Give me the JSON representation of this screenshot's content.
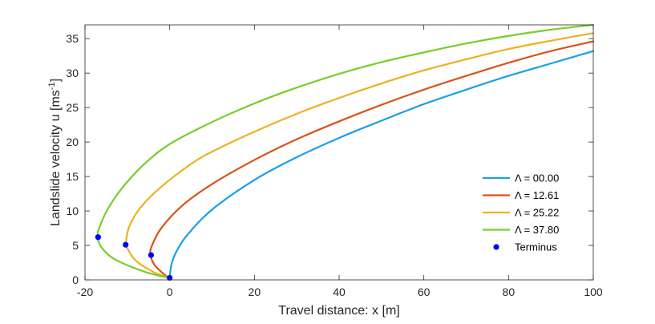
{
  "chart_data": {
    "type": "line",
    "xlabel": "Travel distance: x [m]",
    "ylabel_main": "Landslide velocity u [ms",
    "ylabel_sup": "-1",
    "ylabel_close": "]",
    "xlim": [
      -20,
      100
    ],
    "ylim": [
      0,
      37
    ],
    "xticks": [
      -20,
      0,
      20,
      40,
      60,
      80,
      100
    ],
    "yticks": [
      0,
      5,
      10,
      15,
      20,
      25,
      30,
      35
    ],
    "grid": false,
    "legend_position": "lower-right",
    "series": [
      {
        "name": "Λ = 00.00",
        "color": "#1aa0e8",
        "points": [
          [
            0,
            0.3
          ],
          [
            0.4,
            2.2
          ],
          [
            1.5,
            4.0
          ],
          [
            4,
            6.4
          ],
          [
            10,
            10.2
          ],
          [
            20,
            14.5
          ],
          [
            30,
            17.8
          ],
          [
            40,
            20.6
          ],
          [
            50,
            23.1
          ],
          [
            60,
            25.5
          ],
          [
            70,
            27.6
          ],
          [
            80,
            29.6
          ],
          [
            90,
            31.4
          ],
          [
            100,
            33.2
          ]
        ]
      },
      {
        "name": "Λ = 12.61",
        "color": "#d95319",
        "points": [
          [
            -0.2,
            0.3
          ],
          [
            -1.5,
            0.9
          ],
          [
            -3.6,
            2.2
          ],
          [
            -4.5,
            3.5
          ],
          [
            -4.3,
            4.8
          ],
          [
            -2,
            7.5
          ],
          [
            3,
            10.8
          ],
          [
            10,
            13.9
          ],
          [
            20,
            17.4
          ],
          [
            30,
            20.4
          ],
          [
            40,
            23.0
          ],
          [
            50,
            25.4
          ],
          [
            60,
            27.6
          ],
          [
            70,
            29.6
          ],
          [
            80,
            31.5
          ],
          [
            90,
            33.2
          ],
          [
            100,
            34.6
          ]
        ]
      },
      {
        "name": "Λ = 25.22",
        "color": "#edb120",
        "points": [
          [
            -0.2,
            0.3
          ],
          [
            -4,
            1.2
          ],
          [
            -8,
            2.8
          ],
          [
            -9.9,
            4.5
          ],
          [
            -10.3,
            5.5
          ],
          [
            -9.5,
            7.8
          ],
          [
            -7,
            10.4
          ],
          [
            -2,
            13.5
          ],
          [
            5,
            16.8
          ],
          [
            10,
            18.6
          ],
          [
            20,
            21.5
          ],
          [
            30,
            24.1
          ],
          [
            40,
            26.4
          ],
          [
            50,
            28.5
          ],
          [
            60,
            30.4
          ],
          [
            70,
            32.0
          ],
          [
            80,
            33.5
          ],
          [
            90,
            34.7
          ],
          [
            100,
            35.8
          ]
        ]
      },
      {
        "name": "Λ = 37.80",
        "color": "#77ce2a",
        "points": [
          [
            -0.2,
            0.3
          ],
          [
            -6,
            1.2
          ],
          [
            -13,
            3.0
          ],
          [
            -16.2,
            4.8
          ],
          [
            -17,
            6.3
          ],
          [
            -16.6,
            7.6
          ],
          [
            -14.5,
            10.4
          ],
          [
            -11,
            13.5
          ],
          [
            -6,
            16.8
          ],
          [
            0,
            19.7
          ],
          [
            10,
            22.9
          ],
          [
            20,
            25.6
          ],
          [
            30,
            27.9
          ],
          [
            40,
            29.9
          ],
          [
            50,
            31.6
          ],
          [
            60,
            33.0
          ],
          [
            70,
            34.3
          ],
          [
            80,
            35.4
          ],
          [
            90,
            36.3
          ],
          [
            100,
            37.0
          ]
        ]
      }
    ],
    "terminus": {
      "name": "Terminus",
      "color": "#0000ff",
      "points": [
        [
          0,
          0.3
        ],
        [
          -4.4,
          3.6
        ],
        [
          -10.4,
          5.1
        ],
        [
          -16.9,
          6.2
        ]
      ]
    }
  }
}
